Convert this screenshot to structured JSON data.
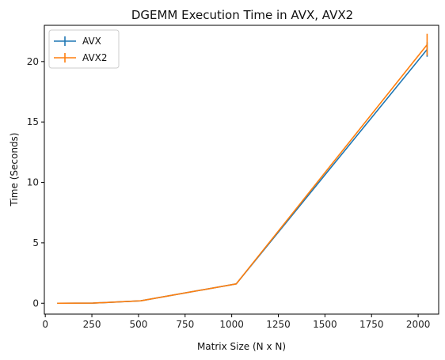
{
  "chart_data": {
    "type": "line",
    "title": "DGEMM Execution Time in AVX, AVX2",
    "xlabel": "Matrix Size (N x N)",
    "ylabel": "Time (Seconds)",
    "xlim": [
      -5,
      2110
    ],
    "ylim": [
      -0.9,
      23.0
    ],
    "xticks": [
      0,
      250,
      500,
      750,
      1000,
      1250,
      1500,
      1750,
      2000
    ],
    "yticks": [
      0,
      5,
      10,
      15,
      20
    ],
    "x": [
      64,
      256,
      512,
      1024,
      2048
    ],
    "grid": false,
    "legend": "top-left",
    "series": [
      {
        "name": "AVX",
        "color": "#1f77b4",
        "values": [
          0.0,
          0.01,
          0.2,
          1.6,
          21.0
        ],
        "errors": [
          0.0,
          0.0,
          0.02,
          0.04,
          0.6
        ]
      },
      {
        "name": "AVX2",
        "color": "#ff7f0e",
        "values": [
          0.0,
          0.01,
          0.2,
          1.6,
          21.4
        ],
        "errors": [
          0.0,
          0.0,
          0.02,
          0.04,
          0.9
        ]
      }
    ]
  }
}
